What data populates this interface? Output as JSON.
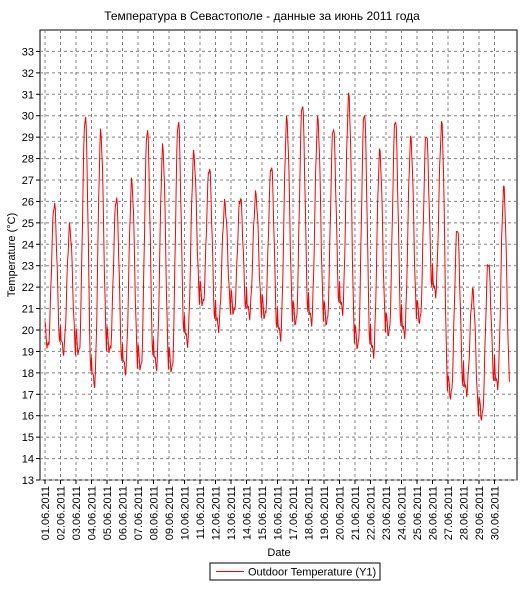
{
  "chart_data": {
    "type": "line",
    "title": "Температура в Севастополе - данные за июнь 2011 года",
    "xlabel": "Date",
    "ylabel": "Temperature (°C)",
    "ylim": [
      13,
      34
    ],
    "yticks": [
      13,
      14,
      15,
      16,
      17,
      18,
      19,
      20,
      21,
      22,
      23,
      24,
      25,
      26,
      27,
      28,
      29,
      30,
      31,
      32,
      33
    ],
    "x_tick_labels": [
      "01.06.2011",
      "02.06.2011",
      "03.06.2011",
      "04.06.2011",
      "05.06.2011",
      "06.06.2011",
      "07.06.2011",
      "08.06.2011",
      "09.06.2011",
      "10.06.2011",
      "11.06.2011",
      "12.06.2011",
      "13.06.2011",
      "14.06.2011",
      "15.06.2011",
      "16.06.2011",
      "17.06.2011",
      "18.06.2011",
      "19.06.2011",
      "20.06.2011",
      "21.06.2011",
      "22.06.2011",
      "23.06.2011",
      "24.06.2011",
      "25.06.2011",
      "26.06.2011",
      "27.06.2011",
      "28.06.2011",
      "29.06.2011",
      "30.06.2011"
    ],
    "grid": true,
    "legend_position": "bottom-center",
    "series": [
      {
        "name": "Outdoor Temperature (Y1)",
        "color": "#ff0000",
        "daily_min": [
          19.2,
          19.0,
          18.9,
          17.5,
          19.0,
          18.1,
          18.2,
          18.3,
          18.1,
          19.4,
          21.2,
          20.1,
          20.8,
          20.7,
          20.6,
          19.7,
          20.3,
          20.4,
          20.3,
          20.9,
          19.2,
          18.9,
          19.8,
          19.8,
          20.4,
          21.7,
          16.9,
          17.1,
          15.9,
          17.4
        ],
        "daily_max": [
          25.9,
          24.8,
          30.0,
          29.2,
          26.2,
          26.9,
          29.4,
          28.5,
          29.8,
          28.2,
          27.6,
          25.9,
          26.2,
          26.3,
          27.7,
          29.8,
          30.6,
          29.8,
          29.5,
          30.9,
          30.2,
          28.3,
          29.9,
          28.9,
          29.2,
          29.6,
          24.8,
          21.8,
          23.2,
          26.6
        ]
      }
    ]
  }
}
